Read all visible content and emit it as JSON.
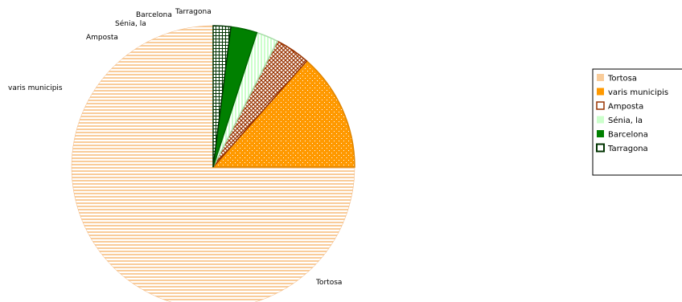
{
  "chart_data": {
    "type": "pie",
    "title": "",
    "slices": [
      {
        "label": "Tortosa",
        "slice_label": "Tortosa",
        "value": 75.0,
        "color": "#f9cc9a",
        "edge": "#f2b47a",
        "pattern": "hlines"
      },
      {
        "label": "varis municipis",
        "slice_label": "varis municipis",
        "value": 13.5,
        "color": "#ff9900",
        "edge": "#e08500",
        "pattern": "dots"
      },
      {
        "label": "Amposta",
        "slice_label": "Amposta",
        "value": 4.0,
        "color": "#993300",
        "edge": "#993300",
        "pattern": "crosshatch"
      },
      {
        "label": "Sénia, la",
        "slice_label": "Sénia, la",
        "value": 2.5,
        "color": "#ccffcc",
        "edge": "#aaddaa",
        "pattern": "vlines"
      },
      {
        "label": "Barcelona",
        "slice_label": "Barcelona",
        "value": 3.0,
        "color": "#008000",
        "edge": "#006600",
        "pattern": "solid"
      },
      {
        "label": "Tarragona",
        "slice_label": "Tarragona",
        "value": 2.0,
        "color": "#003300",
        "edge": "#003300",
        "pattern": "grid"
      }
    ],
    "legend_position": "right"
  }
}
